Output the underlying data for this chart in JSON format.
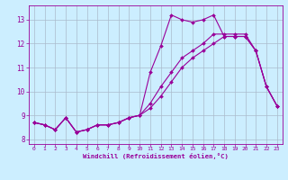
{
  "xlabel": "Windchill (Refroidissement éolien,°C)",
  "background_color": "#cceeff",
  "line_color": "#990099",
  "grid_color": "#aabbcc",
  "xlim": [
    -0.5,
    23.5
  ],
  "ylim": [
    7.8,
    13.6
  ],
  "xticks": [
    0,
    1,
    2,
    3,
    4,
    5,
    6,
    7,
    8,
    9,
    10,
    11,
    12,
    13,
    14,
    15,
    16,
    17,
    18,
    19,
    20,
    21,
    22,
    23
  ],
  "yticks": [
    8,
    9,
    10,
    11,
    12,
    13
  ],
  "x": [
    0,
    1,
    2,
    3,
    4,
    5,
    6,
    7,
    8,
    9,
    10,
    11,
    12,
    13,
    14,
    15,
    16,
    17,
    18,
    19,
    20,
    21,
    22,
    23
  ],
  "line1_actual": [
    8.7,
    8.6,
    8.4,
    8.9,
    8.3,
    8.4,
    8.6,
    8.6,
    8.7,
    8.9,
    9.0,
    10.8,
    11.9,
    13.2,
    13.0,
    12.9,
    13.0,
    13.2,
    12.3,
    12.3,
    12.3,
    11.7,
    10.2,
    9.4
  ],
  "line2_smooth_hi": [
    8.7,
    8.6,
    8.4,
    8.9,
    8.3,
    8.4,
    8.6,
    8.6,
    8.7,
    8.9,
    9.0,
    9.5,
    10.2,
    10.8,
    11.4,
    11.7,
    12.0,
    12.4,
    12.4,
    12.4,
    12.4,
    11.7,
    10.2,
    9.4
  ],
  "line3_smooth_lo": [
    8.7,
    8.6,
    8.4,
    8.9,
    8.3,
    8.4,
    8.6,
    8.6,
    8.7,
    8.9,
    9.0,
    9.3,
    9.8,
    10.4,
    11.0,
    11.4,
    11.7,
    12.0,
    12.3,
    12.3,
    12.3,
    11.7,
    10.2,
    9.4
  ]
}
